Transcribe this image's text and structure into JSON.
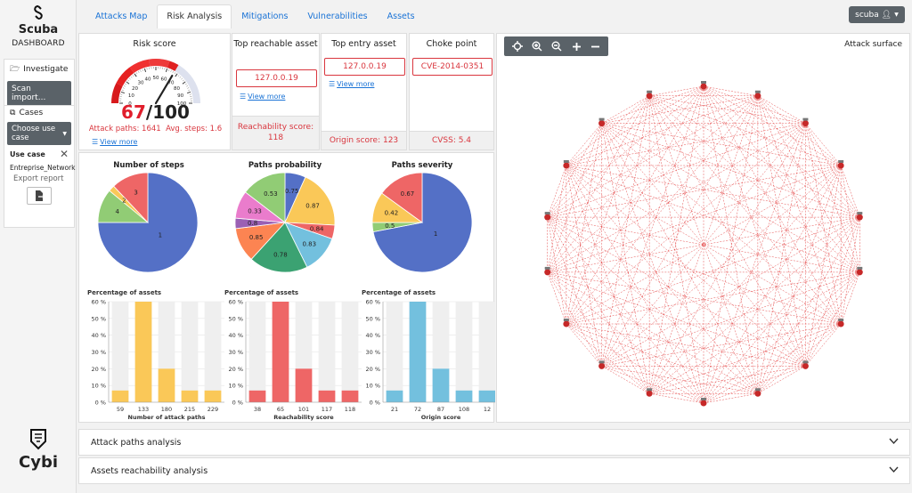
{
  "sidebar": {
    "brand": "Scuba",
    "subtitle": "DASHBOARD",
    "investigate": "Investigate",
    "scan_import": "Scan import...",
    "cases": "Cases",
    "choose_use_case": "Choose use case",
    "use_case_label": "Use case",
    "use_case_value": "Entreprise_Network",
    "export_report": "Export report",
    "footer_brand": "Cybi"
  },
  "tabs": [
    "Attacks Map",
    "Risk Analysis",
    "Mitigations",
    "Vulnerabilities",
    "Assets"
  ],
  "user": {
    "name": "scuba"
  },
  "risk": {
    "title": "Risk score",
    "score": "67",
    "max": "/100",
    "gauge_ticks": [
      "0",
      "10",
      "20",
      "30",
      "40",
      "50",
      "60",
      "70",
      "80",
      "90",
      "100"
    ],
    "attack_paths": "Attack paths: 1641",
    "avg_steps": "Avg. steps: 1.6",
    "view_more": "View more",
    "score_value": 67
  },
  "top_reachable": {
    "title": "Top reachable asset",
    "value": "127.0.0.19",
    "view_more": "View more",
    "footer": "Reachability score: 118"
  },
  "top_entry": {
    "title": "Top entry asset",
    "value": "127.0.0.19",
    "view_more": "View more",
    "footer": "Origin score: 123"
  },
  "choke": {
    "title": "Choke point",
    "value": "CVE-2014-0351",
    "footer": "CVSS: 5.4"
  },
  "attack_surface": {
    "title": "Attack surface"
  },
  "accordion": [
    "Attack paths analysis",
    "Assets reachability analysis"
  ],
  "chart_data": [
    {
      "type": "pie",
      "title": "Number of steps",
      "labels": [
        "1",
        "4",
        "2",
        "3"
      ],
      "values": [
        75,
        11,
        2,
        12
      ],
      "colors": [
        "#5470c6",
        "#91cc75",
        "#fac858",
        "#ee6666"
      ]
    },
    {
      "type": "pie",
      "title": "Paths probability",
      "labels": [
        "0.75",
        "0.87",
        "0.84",
        "0.83",
        "0.78",
        "0.85",
        "0.8",
        "0.33",
        "0.53"
      ],
      "values": [
        6,
        17,
        4,
        11,
        17,
        10,
        3,
        8,
        13
      ],
      "shown_labels": [
        "0.75",
        "0.87",
        "0.84",
        "0.83",
        "0.78",
        "0.85",
        "0.8",
        "0.33",
        "0.53"
      ],
      "colors": [
        "#5470c6",
        "#fac858",
        "#ee6666",
        "#73c0de",
        "#3ba272",
        "#fc8452",
        "#9a60b4",
        "#ea7ccc",
        "#91cc75"
      ],
      "order_colors": [
        "#5470c6",
        "#fac858",
        "#ee6666",
        "#73c0de",
        "#3ba272",
        "#fc8452",
        "#9a60b4",
        "#ea7ccc",
        "#91cc75",
        "#fac858",
        "#ee6666"
      ]
    },
    {
      "type": "pie",
      "title": "Paths severity",
      "labels": [
        "1",
        "0.5",
        "0.42",
        "0.67"
      ],
      "values": [
        72,
        3,
        10,
        15
      ],
      "colors": [
        "#5470c6",
        "#91cc75",
        "#fac858",
        "#ee6666"
      ]
    },
    {
      "type": "bar",
      "title": "Percentage of assets",
      "xlabel": "Number of attack paths",
      "categories": [
        "59",
        "133",
        "180",
        "215",
        "229"
      ],
      "values": [
        7,
        60,
        20,
        7,
        7
      ],
      "color": "#fac858",
      "yticks": [
        "0 %",
        "10 %",
        "20 %",
        "30 %",
        "40 %",
        "50 %",
        "60 %"
      ]
    },
    {
      "type": "bar",
      "title": "Percentage of assets",
      "xlabel": "Reachability score",
      "categories": [
        "38",
        "65",
        "101",
        "117",
        "118"
      ],
      "values": [
        7,
        60,
        20,
        7,
        7
      ],
      "color": "#ee6666",
      "yticks": [
        "0 %",
        "10 %",
        "20 %",
        "30 %",
        "40 %",
        "50 %",
        "60 %"
      ]
    },
    {
      "type": "bar",
      "title": "Percentage of assets",
      "xlabel": "Origin score",
      "categories": [
        "21",
        "72",
        "87",
        "108",
        "12"
      ],
      "values": [
        7,
        60,
        20,
        7,
        7
      ],
      "color": "#73c0de",
      "yticks": [
        "0 %",
        "10 %",
        "20 %",
        "30 %",
        "40 %",
        "50 %",
        "60 %"
      ]
    }
  ]
}
